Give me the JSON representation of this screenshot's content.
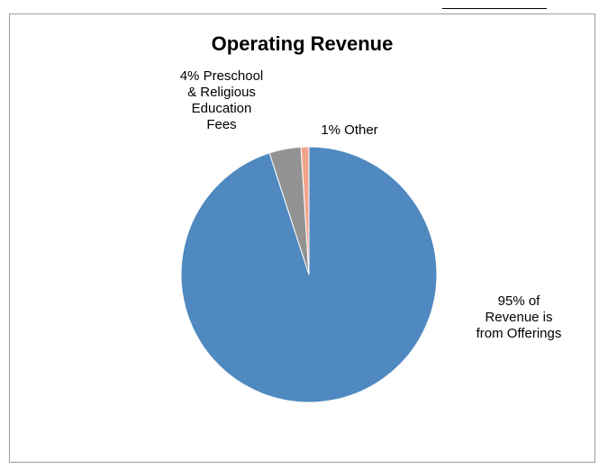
{
  "chart_data": {
    "type": "pie",
    "title": "Operating Revenue",
    "slices": [
      {
        "label": "95% of Revenue is from Offerings",
        "value": 95,
        "color": "#4f89c0"
      },
      {
        "label": "4% Preschool & Religious Education Fees",
        "value": 4,
        "color": "#929292"
      },
      {
        "label": "1% Other",
        "value": 1,
        "color": "#f2a58e"
      }
    ],
    "labels": {
      "offerings": "95% of\nRevenue is\nfrom Offerings",
      "preschool": "4% Preschool\n& Religious\nEducation\nFees",
      "other": "1% Other"
    },
    "legend": "none"
  }
}
